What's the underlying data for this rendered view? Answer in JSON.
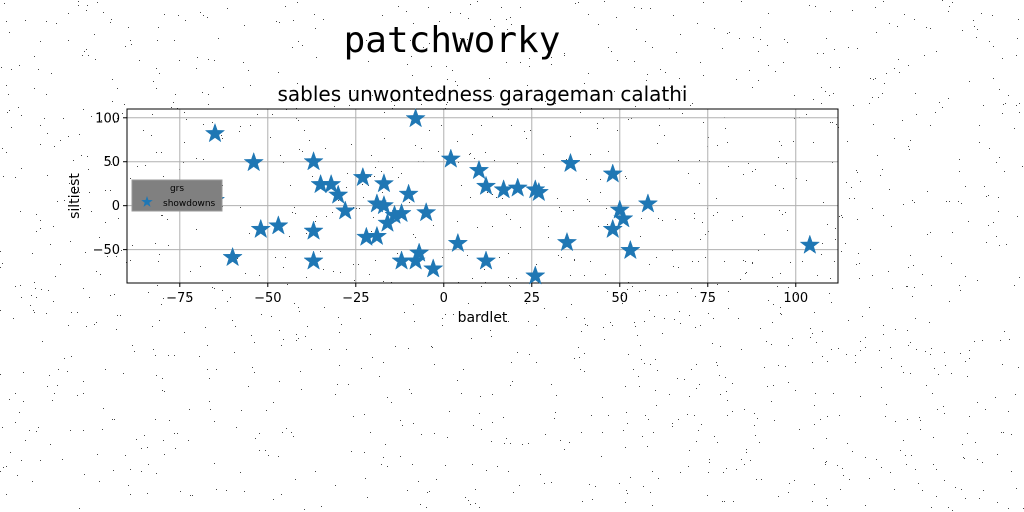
{
  "figure": {
    "suptitle": "patchworky"
  },
  "colors": {
    "marker": "#1f77b4",
    "grid": "#b0b0b0",
    "legend_bg": "#808080"
  },
  "chart_data": {
    "type": "scatter",
    "title": "sables unwontedness garageman calathi",
    "xlabel": "bardlet",
    "ylabel": "siltiest",
    "xlim": [
      -90,
      112
    ],
    "ylim": [
      -88,
      110
    ],
    "grid": true,
    "marker": "star",
    "xticks": [
      -75,
      -50,
      -25,
      0,
      25,
      50,
      75,
      100
    ],
    "yticks": [
      -50,
      0,
      50,
      100
    ],
    "legend": {
      "title": "grs",
      "placement": "center-left",
      "entries": [
        "showdowns"
      ]
    },
    "series": [
      {
        "name": "showdowns",
        "points": [
          [
            -65,
            82
          ],
          [
            -54,
            49
          ],
          [
            -37,
            50
          ],
          [
            -8,
            99
          ],
          [
            2,
            53
          ],
          [
            10,
            40
          ],
          [
            36,
            48
          ],
          [
            48,
            36
          ],
          [
            -65,
            6
          ],
          [
            -52,
            -27
          ],
          [
            -47,
            -23
          ],
          [
            -37,
            -29
          ],
          [
            -37,
            -63
          ],
          [
            -60,
            -59
          ],
          [
            -35,
            24
          ],
          [
            -32,
            24
          ],
          [
            -30,
            12
          ],
          [
            -28,
            -6
          ],
          [
            -23,
            32
          ],
          [
            -22,
            -36
          ],
          [
            -19,
            2
          ],
          [
            -19,
            -35
          ],
          [
            -17,
            25
          ],
          [
            -17,
            0
          ],
          [
            -16,
            -20
          ],
          [
            -14,
            -11
          ],
          [
            -12,
            -9
          ],
          [
            -12,
            -63
          ],
          [
            -10,
            13
          ],
          [
            -8,
            -63
          ],
          [
            -7,
            -54
          ],
          [
            -5,
            -8
          ],
          [
            -3,
            -72
          ],
          [
            4,
            -43
          ],
          [
            12,
            -63
          ],
          [
            12,
            22
          ],
          [
            17,
            18
          ],
          [
            21,
            20
          ],
          [
            26,
            18
          ],
          [
            27,
            15
          ],
          [
            26,
            -80
          ],
          [
            35,
            -42
          ],
          [
            48,
            -27
          ],
          [
            50,
            -5
          ],
          [
            51,
            -15
          ],
          [
            53,
            -51
          ],
          [
            58,
            2
          ],
          [
            104,
            -45
          ]
        ]
      }
    ]
  }
}
